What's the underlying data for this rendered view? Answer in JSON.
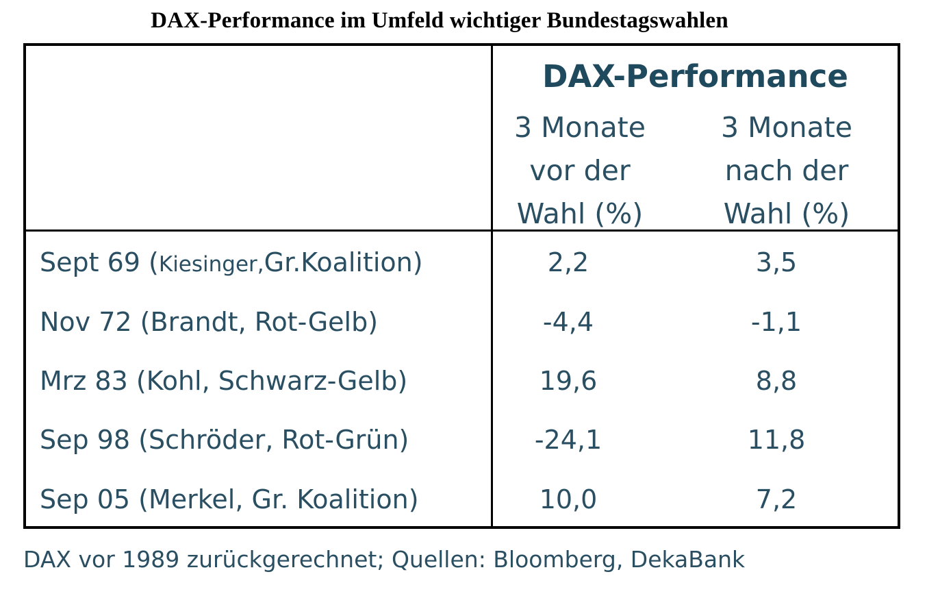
{
  "chart_data": {
    "type": "table",
    "title": "DAX-Performance im Umfeld wichtiger Bundestagswahlen",
    "group_header": "DAX-Performance",
    "columns": [
      [
        "3 Monate",
        "vor der",
        "Wahl (%)"
      ],
      [
        "3 Monate",
        "nach der",
        "Wahl (%)"
      ]
    ],
    "rows": [
      {
        "label_main": "Sept 69 (",
        "label_small": "Kiesinger,",
        "label_rest": "Gr.Koalition)",
        "before": "2,2",
        "after": "3,5"
      },
      {
        "label_main": "Nov 72 (Brandt, Rot-Gelb)",
        "label_small": "",
        "label_rest": "",
        "before": "-4,4",
        "after": "-1,1"
      },
      {
        "label_main": "Mrz 83 (Kohl, Schwarz-Gelb)",
        "label_small": "",
        "label_rest": "",
        "before": "19,6",
        "after": "8,8"
      },
      {
        "label_main": "Sep 98 (Schröder, Rot-Grün)",
        "label_small": "",
        "label_rest": "",
        "before": "-24,1",
        "after": "11,8"
      },
      {
        "label_main": "Sep 05 (Merkel, Gr. Koalition)",
        "label_small": "",
        "label_rest": "",
        "before": "10,0",
        "after": "7,2"
      }
    ],
    "footnote": "DAX vor 1989 zurückgerechnet; Quellen: Bloomberg, DekaBank"
  }
}
